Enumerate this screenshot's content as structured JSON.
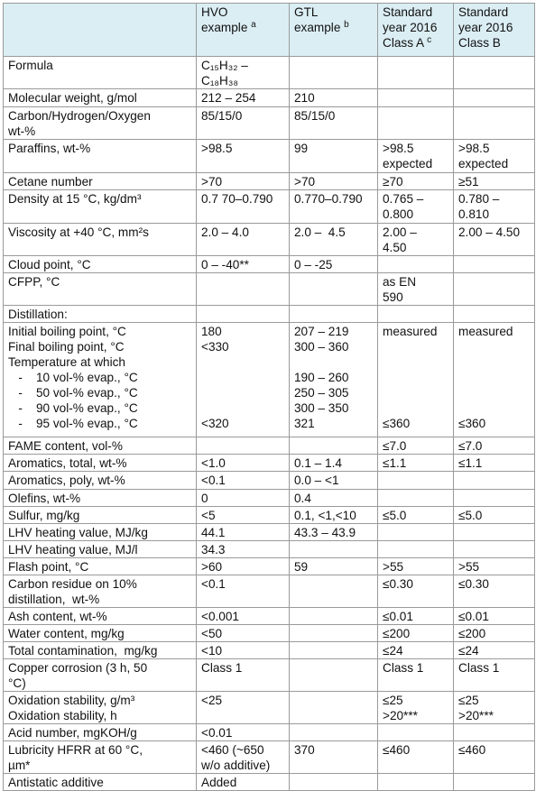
{
  "table": {
    "header": [
      null,
      {
        "text": "HVO\nexample",
        "sup": "a"
      },
      {
        "text": "GTL\nexample",
        "sup": "b"
      },
      {
        "text": "Standard\nyear 2016\nClass A",
        "sup": "c"
      },
      {
        "text": "Standard\nyear 2016\nClass B"
      }
    ],
    "rows": [
      [
        "Formula",
        "C₁₅H₃₂ –\nC₁₈H₃₈",
        null,
        null,
        null
      ],
      [
        "Molecular weight, g/mol",
        "212 – 254",
        "210",
        null,
        null
      ],
      [
        "Carbon/Hydrogen/Oxygen\nwt-%",
        "85/15/0",
        "85/15/0",
        null,
        null
      ],
      [
        "Paraffins, wt-%",
        ">98.5",
        "99",
        ">98.5\nexpected",
        ">98.5\nexpected"
      ],
      [
        "Cetane number",
        ">70",
        ">70",
        "≥70",
        "≥51"
      ],
      [
        "Density at 15 °C, kg/dm³",
        "0.7 70–0.790",
        "0.770–0.790",
        "0.765 –\n0.800",
        "0.780 –\n0.810"
      ],
      [
        "Viscosity at +40 °C, mm²s",
        "2.0 – 4.0",
        "2.0 –  4.5",
        "2.00 –\n4.50",
        "2.00 – 4.50"
      ],
      [
        "Cloud point, °C",
        "0 – -40**",
        "0 – -25",
        null,
        null
      ],
      [
        "CFPP, °C",
        null,
        null,
        "as EN\n590",
        null
      ],
      [
        "Distillation:",
        null,
        null,
        null,
        null
      ],
      [
        "Initial boiling point, °C\nFinal boiling point, °C\nTemperature at which\n   -    10 vol-% evap., °C\n   -    50 vol-% evap., °C\n   -    90 vol-% evap., °C\n   -    95 vol-% evap., °C",
        "180\n<330\n\n\n\n\n<320",
        "207 – 219\n300 – 360\n\n190 – 260\n250 – 305\n300 – 350\n321",
        "measured\n\n\n\n\n\n≤360",
        "measured\n\n\n\n\n\n≤360"
      ],
      [
        "FAME content, vol-%",
        null,
        null,
        "≤7.0",
        "≤7.0"
      ],
      [
        "Aromatics, total, wt-%",
        "<1.0",
        "0.1 – 1.4",
        "≤1.1",
        "≤1.1"
      ],
      [
        "Aromatics, poly, wt-%",
        "<0.1",
        "0.0 – <1",
        null,
        null
      ],
      [
        "Olefins, wt-%",
        "0",
        "0.4",
        null,
        null
      ],
      [
        "Sulfur, mg/kg",
        "<5",
        "0.1, <1,<10",
        "≤5.0",
        "≤5.0"
      ],
      [
        "LHV heating value, MJ/kg",
        "44.1",
        "43.3 – 43.9",
        null,
        null
      ],
      [
        "LHV heating value, MJ/l",
        "34.3",
        null,
        null,
        null
      ],
      [
        "Flash point, °C",
        ">60",
        "59",
        ">55",
        ">55"
      ],
      [
        "Carbon residue on 10%\ndistillation,  wt-%",
        "<0.1",
        null,
        "≤0.30",
        "≤0.30"
      ],
      [
        "Ash content, wt-%",
        "<0.001",
        null,
        "≤0.01",
        "≤0.01"
      ],
      [
        "Water content, mg/kg",
        "<50",
        null,
        "≤200",
        "≤200"
      ],
      [
        "Total contamination,  mg/kg",
        "<10",
        null,
        "≤24",
        "≤24"
      ],
      [
        "Copper corrosion (3 h, 50\n°C)",
        "Class 1",
        null,
        "Class 1",
        "Class 1"
      ],
      [
        "Oxidation stability, g/m³\nOxidation stability, h",
        "<25",
        null,
        "≤25\n>20***",
        "≤25\n>20***"
      ],
      [
        "Acid number, mgKOH/g",
        "<0.01",
        null,
        null,
        null
      ],
      [
        "Lubricity HFRR at 60 °C,\nµm*",
        "<460 (~650\nw/o additive)",
        "370",
        "≤460",
        "≤460"
      ],
      [
        "Antistatic additive",
        "Added",
        null,
        null,
        null
      ]
    ]
  }
}
